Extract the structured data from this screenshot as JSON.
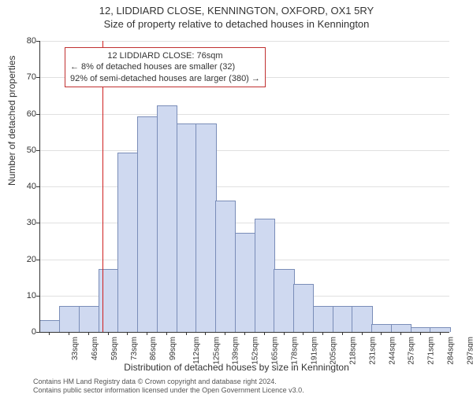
{
  "title": "12, LIDDIARD CLOSE, KENNINGTON, OXFORD, OX1 5RY",
  "subtitle": "Size of property relative to detached houses in Kennington",
  "chart": {
    "type": "histogram",
    "xlabel": "Distribution of detached houses by size in Kennington",
    "ylabel": "Number of detached properties",
    "ylim": [
      0,
      80
    ],
    "ytick_step": 10,
    "x_categories": [
      "33sqm",
      "46sqm",
      "59sqm",
      "73sqm",
      "86sqm",
      "99sqm",
      "112sqm",
      "125sqm",
      "139sqm",
      "152sqm",
      "165sqm",
      "178sqm",
      "191sqm",
      "205sqm",
      "218sqm",
      "231sqm",
      "244sqm",
      "257sqm",
      "271sqm",
      "284sqm",
      "297sqm"
    ],
    "values": [
      3,
      7,
      7,
      17,
      49,
      59,
      62,
      57,
      57,
      36,
      27,
      31,
      17,
      13,
      7,
      7,
      7,
      2,
      2,
      1,
      1
    ],
    "bar_fill": "#cfd9f0",
    "bar_stroke": "#7a8db8",
    "grid_color": "#e0e0e0",
    "background_color": "#ffffff",
    "reference_line": {
      "x_index": 3.25,
      "color": "#d02020"
    },
    "annotation": {
      "lines": [
        "12 LIDDIARD CLOSE: 76sqm",
        "← 8% of detached houses are smaller (32)",
        "92% of semi-detached houses are larger (380) →"
      ],
      "border_color": "#c03030"
    }
  },
  "footer": {
    "line1": "Contains HM Land Registry data © Crown copyright and database right 2024.",
    "line2": "Contains public sector information licensed under the Open Government Licence v3.0."
  }
}
